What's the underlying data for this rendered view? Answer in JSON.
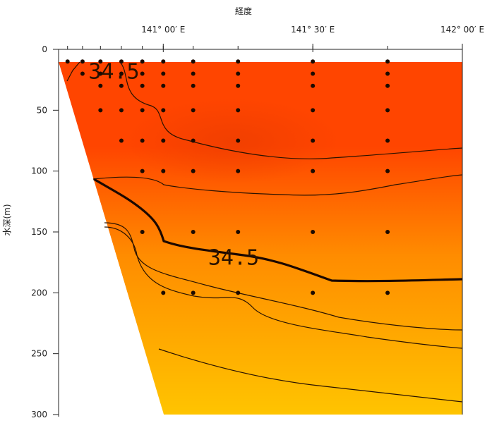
{
  "chart_data": {
    "type": "heatmap",
    "xlabel": "経度",
    "ylabel": "水深(m)",
    "x_range": [
      140.65,
      142.0
    ],
    "y_range": [
      0,
      300
    ],
    "y_ticks": [
      0,
      50,
      100,
      150,
      200,
      250,
      300
    ],
    "x_ticks": [
      {
        "value": 141.0,
        "label": "141° 00′ E"
      },
      {
        "value": 141.5,
        "label": "141° 30′ E"
      },
      {
        "value": 142.0,
        "label": "142° 00′ E"
      }
    ],
    "colors": {
      "top": "#ff4500",
      "mid": "#ff8c00",
      "bottom": "#ffc400",
      "contour": "#2a1200",
      "dots": "#1b0a00",
      "land": "#ffffff"
    },
    "contour_labels": [
      {
        "text": "34.5",
        "x": 140.75,
        "y": 17
      },
      {
        "text": "34.5",
        "x": 141.15,
        "y": 170
      }
    ],
    "stations": [
      {
        "x": 140.68,
        "depths": [
          10
        ]
      },
      {
        "x": 140.73,
        "depths": [
          10,
          20
        ]
      },
      {
        "x": 140.79,
        "depths": [
          10,
          20,
          30,
          50
        ]
      },
      {
        "x": 140.86,
        "depths": [
          10,
          20,
          30,
          50,
          75
        ]
      },
      {
        "x": 140.93,
        "depths": [
          10,
          20,
          30,
          50,
          75,
          100,
          150
        ]
      },
      {
        "x": 141.0,
        "depths": [
          10,
          20,
          30,
          50,
          75,
          100,
          200
        ]
      },
      {
        "x": 141.1,
        "depths": [
          10,
          20,
          30,
          50,
          75,
          100,
          150,
          200
        ]
      },
      {
        "x": 141.25,
        "depths": [
          10,
          20,
          30,
          50,
          75,
          100,
          150,
          200
        ]
      },
      {
        "x": 141.5,
        "depths": [
          10,
          20,
          30,
          50,
          75,
          100,
          150,
          200
        ]
      },
      {
        "x": 141.75,
        "depths": [
          10,
          20,
          30,
          50,
          75,
          100,
          150,
          200
        ]
      }
    ]
  }
}
